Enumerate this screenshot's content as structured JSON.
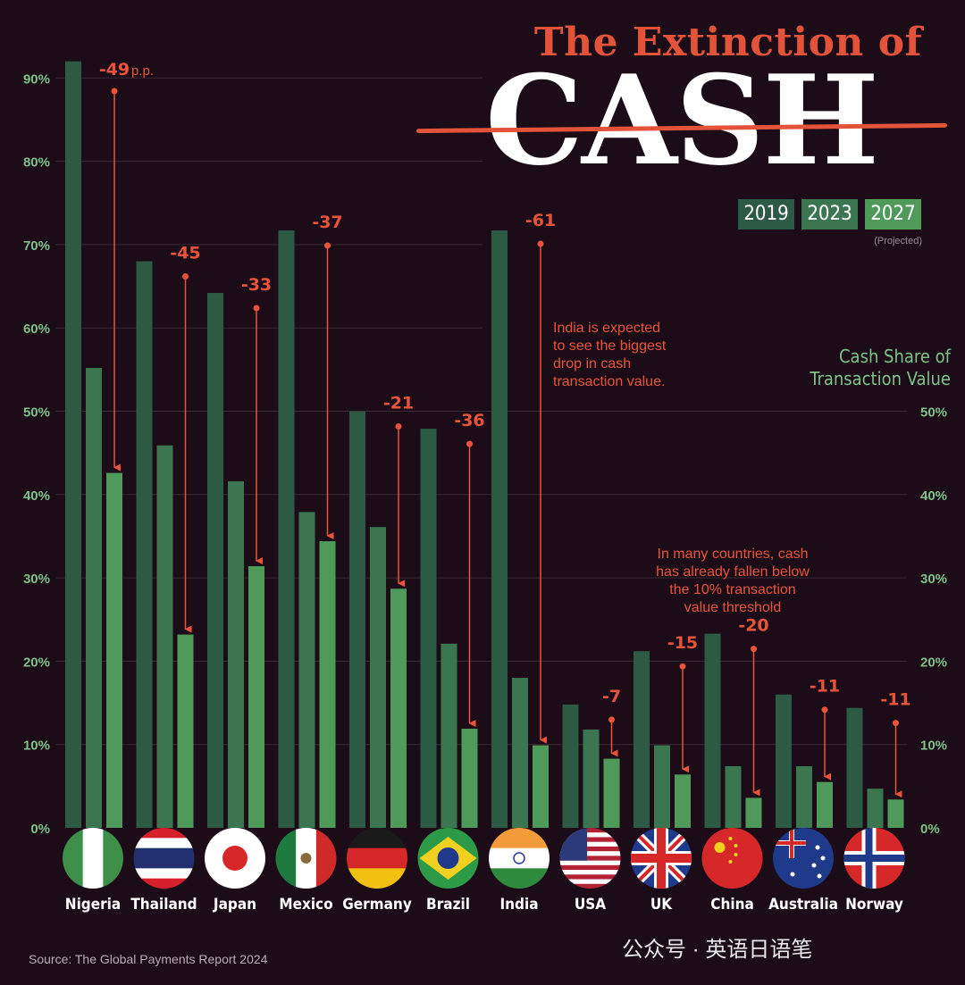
{
  "title": {
    "line1": "The Extinction of",
    "line2": "CASH"
  },
  "legend": [
    {
      "label": "2019",
      "color": "#2c5a45"
    },
    {
      "label": "2023",
      "color": "#3b7650"
    },
    {
      "label": "2027",
      "color": "#4f9a5a"
    }
  ],
  "legend_note": "(Projected)",
  "axis_title": {
    "line1": "Cash Share of",
    "line2": "Transaction Value"
  },
  "notes": {
    "india": {
      "line1": "India is expected",
      "line2": "to see the biggest",
      "line3": "drop in cash",
      "line4": "transaction value."
    },
    "threshold": {
      "line1": "In many countries, cash",
      "line2": "has already fallen below",
      "line3": "the 10% transaction",
      "line4": "value threshold"
    }
  },
  "source": "Source: The Global Payments Report 2024",
  "watermark": "公众号 · 英语日语笔",
  "chart_data": {
    "type": "bar",
    "title": "The Extinction of CASH",
    "ylabel": "Cash Share of Transaction Value",
    "ylim": [
      0,
      90
    ],
    "yticks": [
      "0%",
      "10%",
      "20%",
      "30%",
      "40%",
      "50%",
      "60%",
      "70%",
      "80%",
      "90%"
    ],
    "right_yticks": [
      "0%",
      "10%",
      "20%",
      "30%",
      "40%",
      "50%"
    ],
    "categories": [
      "Nigeria",
      "Thailand",
      "Japan",
      "Mexico",
      "Germany",
      "Brazil",
      "India",
      "USA",
      "UK",
      "China",
      "Australia",
      "Norway"
    ],
    "series": [
      {
        "name": "2019",
        "values": [
          92,
          68,
          64.2,
          71.7,
          50,
          47.9,
          71.7,
          14.8,
          21.2,
          23.3,
          16,
          14.4
        ]
      },
      {
        "name": "2023",
        "values": [
          55.2,
          45.9,
          41.6,
          37.9,
          36.1,
          22.1,
          18,
          11.8,
          9.9,
          7.4,
          7.4,
          4.7
        ]
      },
      {
        "name": "2027 (Projected)",
        "values": [
          42.6,
          23.2,
          31.4,
          34.4,
          28.7,
          11.9,
          9.9,
          8.3,
          6.4,
          3.6,
          5.5,
          3.4
        ]
      }
    ],
    "change_labels": [
      "-49",
      "-45",
      "-33",
      "-37",
      "-21",
      "-36",
      "-61",
      "-7",
      "-15",
      "-20",
      "-11",
      "-11"
    ],
    "change_unit": "p.p."
  }
}
